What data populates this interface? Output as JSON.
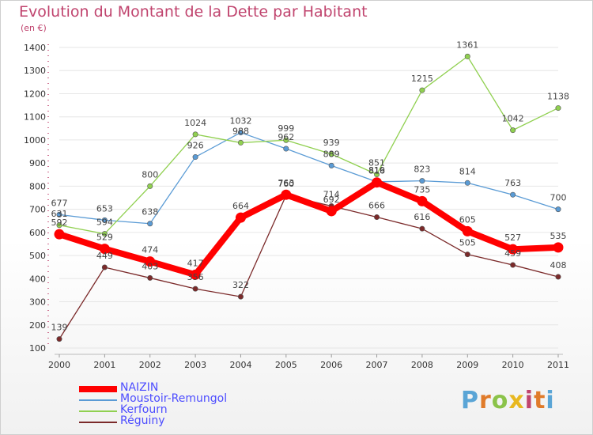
{
  "title": "Evolution du Montant de la Dette par Habitant",
  "unit": "(en €)",
  "logo": {
    "text": "Proxiti",
    "letters": [
      {
        "ch": "P",
        "color": "#5aa5d6"
      },
      {
        "ch": "r",
        "color": "#e07b2a"
      },
      {
        "ch": "o",
        "color": "#8bc34a"
      },
      {
        "ch": "x",
        "color": "#e8b820"
      },
      {
        "ch": "i",
        "color": "#c0446e"
      },
      {
        "ch": "t",
        "color": "#e07b2a"
      },
      {
        "ch": "i",
        "color": "#5aa5d6"
      }
    ]
  },
  "chart_data": {
    "type": "line",
    "title": "Evolution du Montant de la Dette par Habitant",
    "subtitle": "(en €)",
    "x": [
      "2000",
      "2001",
      "2002",
      "2003",
      "2004",
      "2005",
      "2006",
      "2007",
      "2008",
      "2009",
      "2010",
      "2011"
    ],
    "ylim": [
      100,
      1400
    ],
    "yticks": [
      100,
      200,
      300,
      400,
      500,
      600,
      700,
      800,
      900,
      1000,
      1100,
      1200,
      1300,
      1400
    ],
    "grid": "horizontal",
    "legend_position": "bottom-left",
    "series": [
      {
        "name": "NAIZIN",
        "color": "#ff0000",
        "values": [
          592,
          529,
          474,
          417,
          664,
          763,
          692,
          816,
          735,
          605,
          527,
          535
        ]
      },
      {
        "name": "Moustoir-Remungol",
        "color": "#5a9bd5",
        "values": [
          677,
          653,
          638,
          926,
          1032,
          962,
          889,
          819,
          823,
          814,
          763,
          700
        ]
      },
      {
        "name": "Kerfourn",
        "color": "#90d050",
        "values": [
          631,
          594,
          800,
          1024,
          988,
          999,
          939,
          851,
          1215,
          1361,
          1042,
          1138
        ]
      },
      {
        "name": "Réguiny",
        "color": "#7b2a2a",
        "values": [
          139,
          449,
          403,
          356,
          322,
          760,
          714,
          666,
          616,
          505,
          459,
          408
        ]
      }
    ]
  }
}
